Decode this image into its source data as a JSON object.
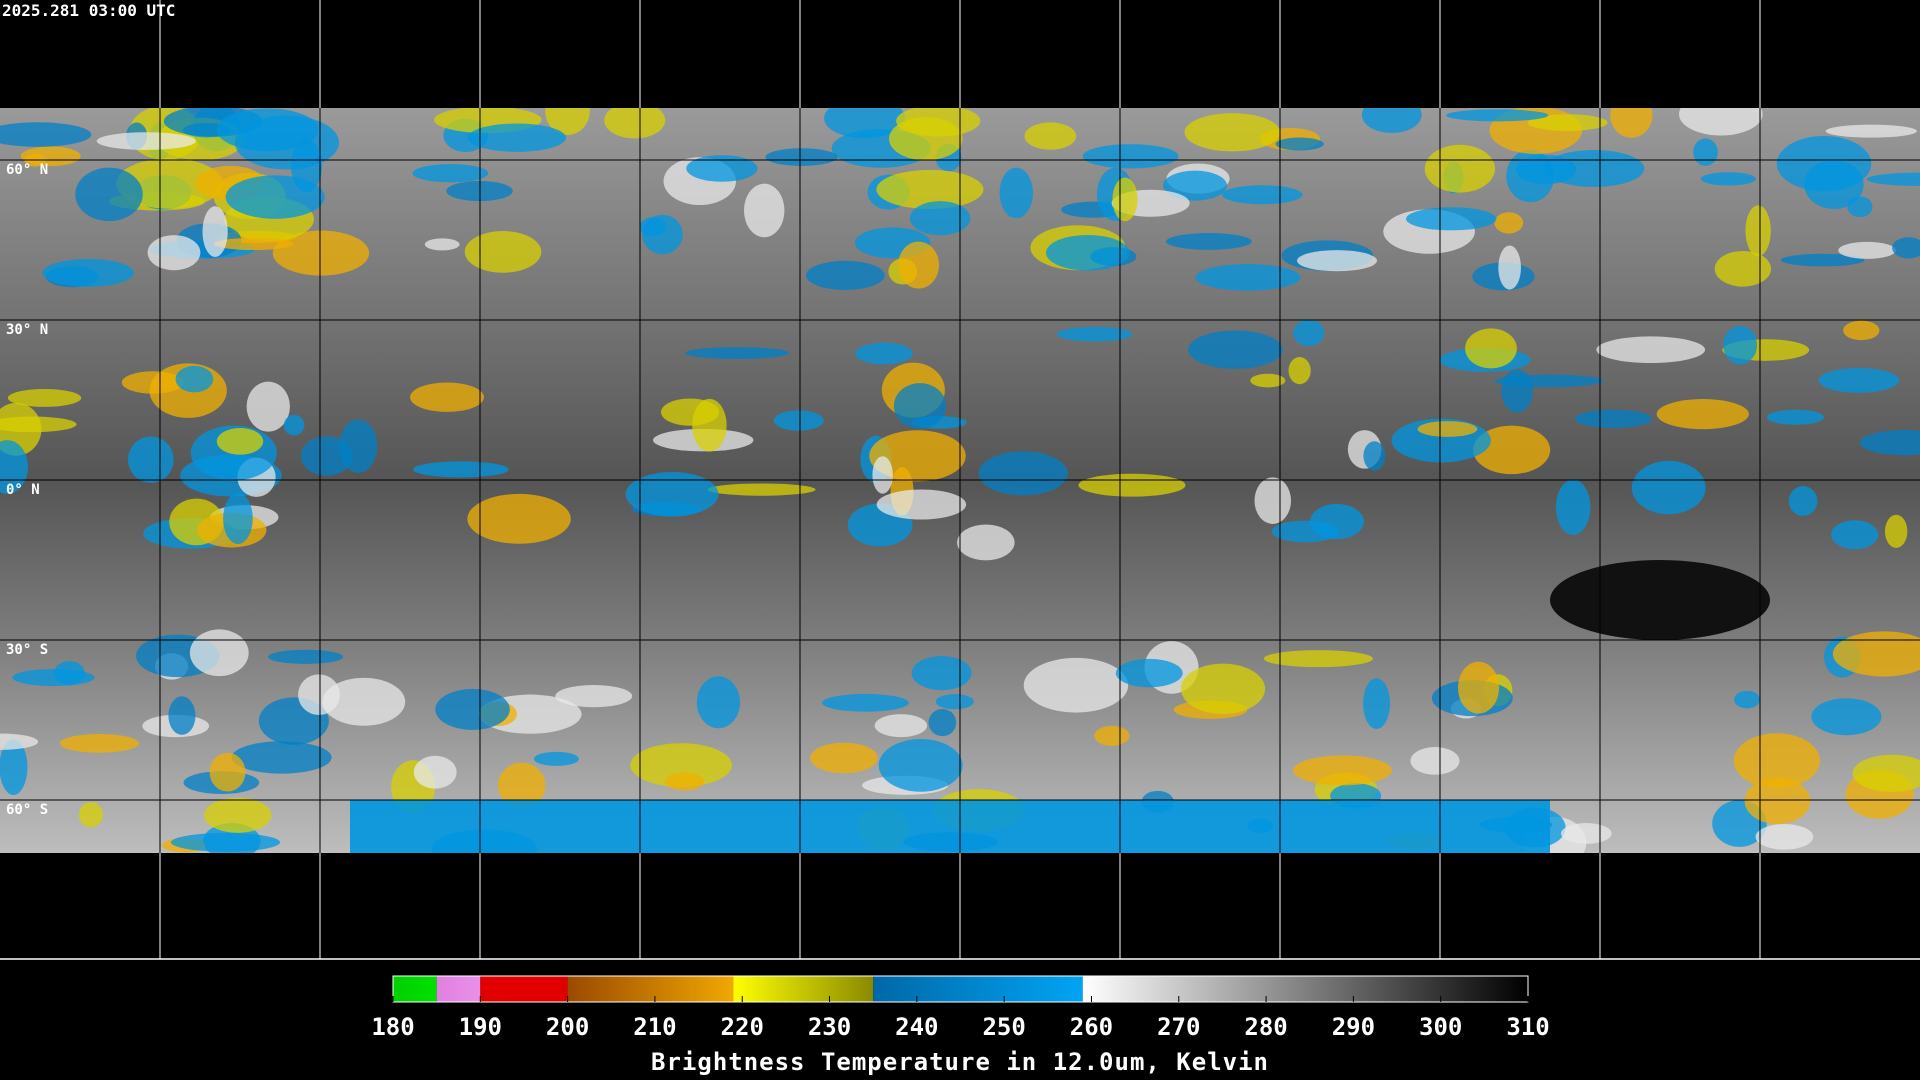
{
  "timestamp": "2025.281 03:00 UTC",
  "lat_lines": [
    {
      "value": 60,
      "label": "60° N"
    },
    {
      "value": 30,
      "label": "30° N"
    },
    {
      "value": 0,
      "label": "0° N"
    },
    {
      "value": -30,
      "label": "30° S"
    },
    {
      "value": -60,
      "label": "60° S"
    }
  ],
  "colorbar": {
    "title": "Brightness Temperature in 12.0um, Kelvin",
    "lim": [
      180,
      310
    ],
    "ticks": [
      180,
      190,
      200,
      210,
      220,
      230,
      240,
      250,
      260,
      270,
      280,
      290,
      300,
      310
    ],
    "segments": [
      {
        "from": 180,
        "to": 185,
        "colors": [
          "#00d000",
          "#00e000"
        ]
      },
      {
        "from": 185,
        "to": 190,
        "colors": [
          "#e080e0",
          "#e890e8"
        ]
      },
      {
        "from": 190,
        "to": 200,
        "colors": [
          "#e00000",
          "#e00000"
        ]
      },
      {
        "from": 200,
        "to": 219,
        "colors": [
          "#9a4a00",
          "#f0a800"
        ]
      },
      {
        "from": 219,
        "to": 235,
        "colors": [
          "#ffff00",
          "#8a8a00"
        ]
      },
      {
        "from": 235,
        "to": 259,
        "colors": [
          "#0068a8",
          "#00a4f4"
        ]
      },
      {
        "from": 259,
        "to": 310,
        "colors": [
          "#ffffff",
          "#000000"
        ]
      }
    ]
  }
}
